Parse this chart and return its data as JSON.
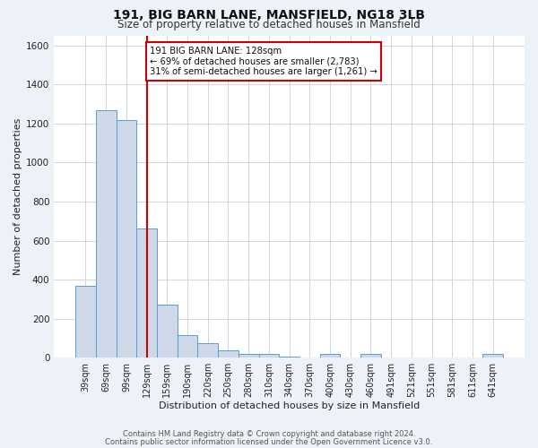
{
  "title1": "191, BIG BARN LANE, MANSFIELD, NG18 3LB",
  "title2": "Size of property relative to detached houses in Mansfield",
  "xlabel": "Distribution of detached houses by size in Mansfield",
  "ylabel": "Number of detached properties",
  "bar_labels": [
    "39sqm",
    "69sqm",
    "99sqm",
    "129sqm",
    "159sqm",
    "190sqm",
    "220sqm",
    "250sqm",
    "280sqm",
    "310sqm",
    "340sqm",
    "370sqm",
    "400sqm",
    "430sqm",
    "460sqm",
    "491sqm",
    "521sqm",
    "551sqm",
    "581sqm",
    "611sqm",
    "641sqm"
  ],
  "bar_values": [
    370,
    1270,
    1220,
    660,
    270,
    115,
    75,
    38,
    20,
    20,
    5,
    0,
    18,
    0,
    18,
    0,
    0,
    0,
    0,
    0,
    18
  ],
  "bar_color": "#cdd9e8",
  "bar_edge_color": "#5b9bd5",
  "ylim": [
    0,
    1650
  ],
  "yticks": [
    0,
    200,
    400,
    600,
    800,
    1000,
    1200,
    1400,
    1600
  ],
  "vline_x": 3,
  "vline_color": "#cc0000",
  "annotation_line1": "191 BIG BARN LANE: 128sqm",
  "annotation_line2": "← 69% of detached houses are smaller (2,783)",
  "annotation_line3": "31% of semi-detached houses are larger (1,261) →",
  "annotation_box_color": "#ffffff",
  "annotation_box_edge_color": "#cc0000",
  "footer1": "Contains HM Land Registry data © Crown copyright and database right 2024.",
  "footer2": "Contains public sector information licensed under the Open Government Licence v3.0.",
  "bg_color": "#edf2f8",
  "plot_bg_color": "#ffffff",
  "grid_color": "#c5d0de"
}
